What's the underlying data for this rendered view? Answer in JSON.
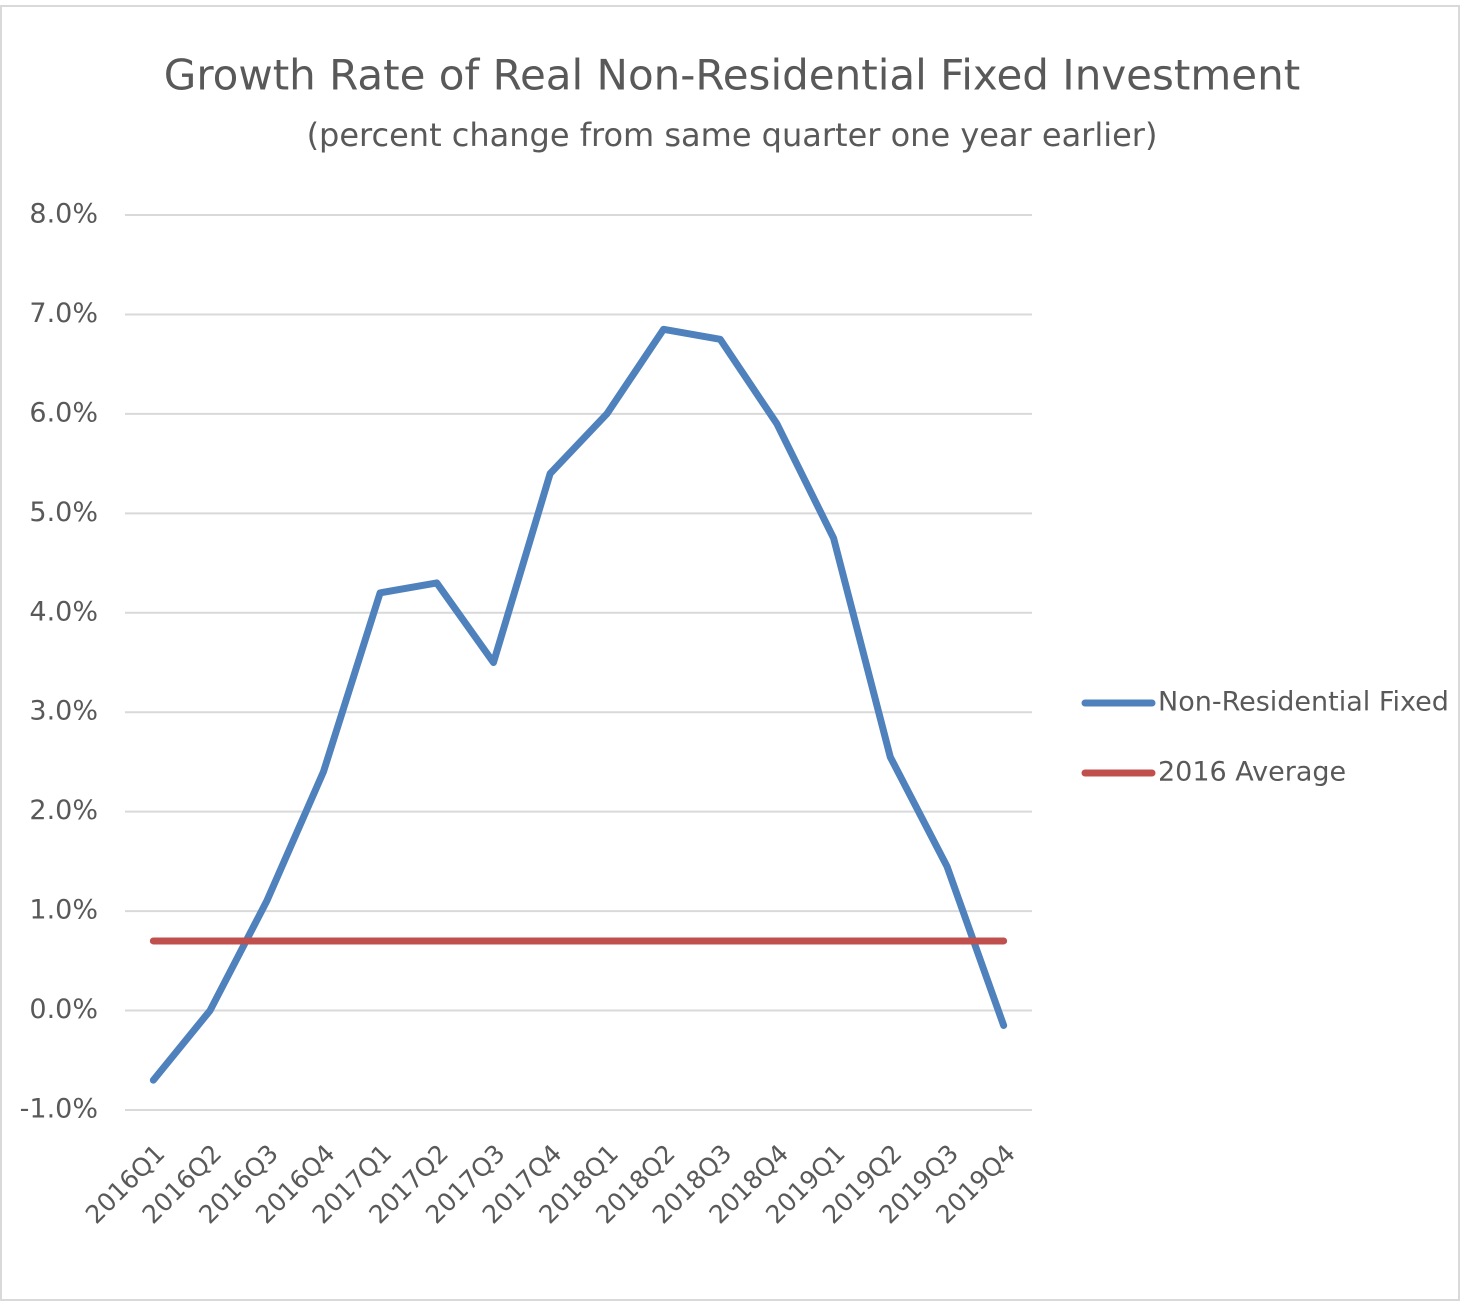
{
  "chart_data": {
    "type": "line",
    "title": "Growth Rate of Real Non-Residential Fixed Investment",
    "subtitle": "(percent change from same quarter one year earlier)",
    "categories": [
      "2016Q1",
      "2016Q2",
      "2016Q3",
      "2016Q4",
      "2017Q1",
      "2017Q2",
      "2017Q3",
      "2017Q4",
      "2018Q1",
      "2018Q2",
      "2018Q3",
      "2018Q4",
      "2019Q1",
      "2019Q2",
      "2019Q3",
      "2019Q4"
    ],
    "series": [
      {
        "name": "Non-Residential Fixed",
        "color": "#4f81bd",
        "values": [
          -0.7,
          0.0,
          1.1,
          2.4,
          4.2,
          4.3,
          3.5,
          5.4,
          6.0,
          6.85,
          6.75,
          5.9,
          4.75,
          2.55,
          1.45,
          -0.15
        ]
      },
      {
        "name": "2016 Average",
        "color": "#c0504d",
        "values": [
          0.7,
          0.7,
          0.7,
          0.7,
          0.7,
          0.7,
          0.7,
          0.7,
          0.7,
          0.7,
          0.7,
          0.7,
          0.7,
          0.7,
          0.7,
          0.7
        ]
      }
    ],
    "ylim": [
      -1,
      8
    ],
    "yticks": [
      {
        "value": -1,
        "label": "-1.0%"
      },
      {
        "value": 0,
        "label": "0.0%"
      },
      {
        "value": 1,
        "label": "1.0%"
      },
      {
        "value": 2,
        "label": "2.0%"
      },
      {
        "value": 3,
        "label": "3.0%"
      },
      {
        "value": 4,
        "label": "4.0%"
      },
      {
        "value": 5,
        "label": "5.0%"
      },
      {
        "value": 6,
        "label": "6.0%"
      },
      {
        "value": 7,
        "label": "7.0%"
      },
      {
        "value": 8,
        "label": "8.0%"
      }
    ],
    "grid": true,
    "legend": "right"
  }
}
